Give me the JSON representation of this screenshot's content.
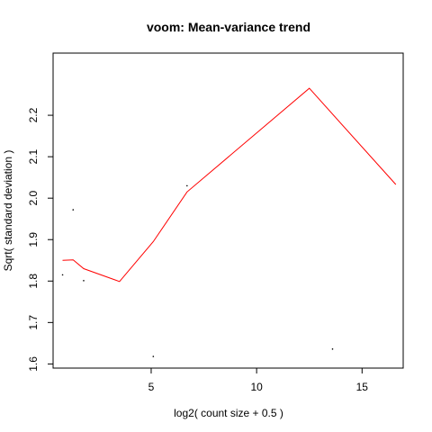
{
  "chart_data": {
    "type": "scatter",
    "title": "voom: Mean-variance trend",
    "xlabel": "log2( count size + 0.5 )",
    "ylabel": "Sqrt( standard deviation )",
    "xlim": [
      0.35,
      16.95
    ],
    "ylim": [
      1.59,
      2.35
    ],
    "x_ticks": [
      5,
      10,
      15
    ],
    "y_ticks": [
      1.6,
      1.7,
      1.8,
      1.9,
      2.0,
      2.1,
      2.2
    ],
    "grid": false,
    "points": [
      {
        "x": 0.8,
        "y": 1.815
      },
      {
        "x": 1.3,
        "y": 1.972
      },
      {
        "x": 1.8,
        "y": 1.801
      },
      {
        "x": 5.1,
        "y": 1.618
      },
      {
        "x": 6.7,
        "y": 2.03
      },
      {
        "x": 13.6,
        "y": 1.636
      }
    ],
    "trend_line": {
      "color": "#ff0000",
      "x": [
        0.8,
        1.3,
        1.8,
        3.5,
        5.1,
        6.7,
        12.5,
        16.6
      ],
      "y": [
        1.85,
        1.851,
        1.83,
        1.799,
        1.895,
        2.015,
        2.265,
        2.033
      ]
    }
  }
}
